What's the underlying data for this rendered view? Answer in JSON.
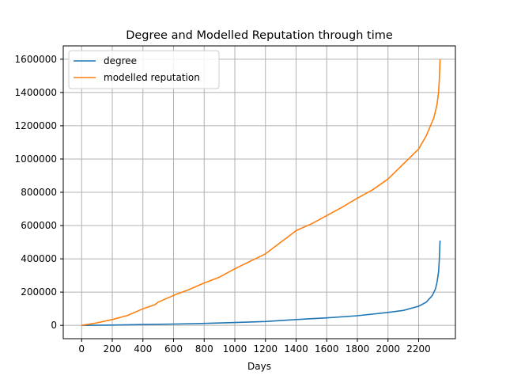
{
  "chart_data": {
    "type": "line",
    "title": "Degree and Modelled Reputation through time",
    "xlabel": "Days",
    "ylabel": "",
    "xlim": [
      -120,
      2440
    ],
    "ylim": [
      -80000,
      1680000
    ],
    "xticks": [
      0,
      200,
      400,
      600,
      800,
      1000,
      1200,
      1400,
      1600,
      1800,
      2000,
      2200
    ],
    "yticks": [
      0,
      200000,
      400000,
      600000,
      800000,
      1000000,
      1200000,
      1400000,
      1600000
    ],
    "grid": true,
    "legend_position": "top-left",
    "series": [
      {
        "name": "degree",
        "color": "#1f77b4",
        "x": [
          0,
          200,
          400,
          600,
          800,
          1000,
          1200,
          1400,
          1600,
          1800,
          2000,
          2100,
          2200,
          2250,
          2290,
          2310,
          2320,
          2330,
          2335,
          2340
        ],
        "y": [
          0,
          2000,
          5000,
          8000,
          12000,
          17000,
          23000,
          35000,
          45000,
          58000,
          78000,
          90000,
          115000,
          140000,
          180000,
          220000,
          260000,
          320000,
          400000,
          510000
        ]
      },
      {
        "name": "modelled reputation",
        "color": "#ff7f0e",
        "x": [
          0,
          100,
          200,
          300,
          400,
          480,
          500,
          600,
          700,
          800,
          900,
          1000,
          1100,
          1200,
          1300,
          1380,
          1400,
          1500,
          1600,
          1700,
          1800,
          1900,
          2000,
          2100,
          2200,
          2250,
          2300,
          2320,
          2330,
          2335,
          2340
        ],
        "y": [
          0,
          15000,
          35000,
          60000,
          100000,
          125000,
          140000,
          180000,
          215000,
          255000,
          290000,
          340000,
          385000,
          430000,
          500000,
          555000,
          570000,
          610000,
          660000,
          710000,
          765000,
          815000,
          880000,
          970000,
          1060000,
          1140000,
          1250000,
          1330000,
          1400000,
          1480000,
          1600000
        ]
      }
    ]
  }
}
